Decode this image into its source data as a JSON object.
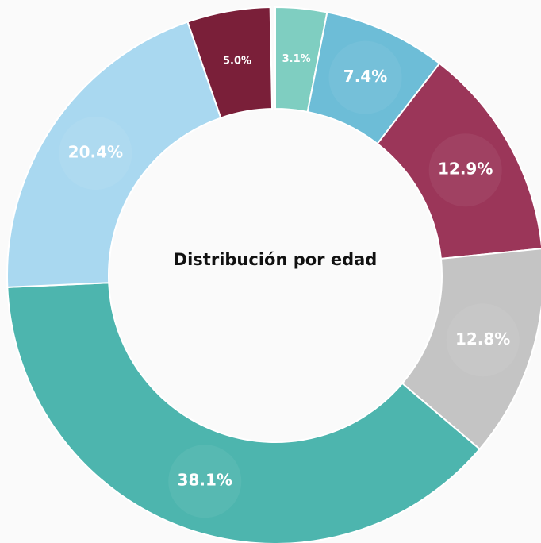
{
  "chart_data": {
    "type": "donut",
    "title": "Distribución por edad",
    "values": [
      3.1,
      7.4,
      12.9,
      12.8,
      38.1,
      20.4,
      5.0
    ],
    "value_labels": [
      "3.1%",
      "7.4%",
      "12.9%",
      "12.8%",
      "38.1%",
      "20.4%",
      "5.0%"
    ],
    "colors": [
      "#7fcec1",
      "#6dbdd7",
      "#9b3659",
      "#c4c4c4",
      "#4db5ae",
      "#a9d8f0",
      "#7a1f39"
    ]
  }
}
